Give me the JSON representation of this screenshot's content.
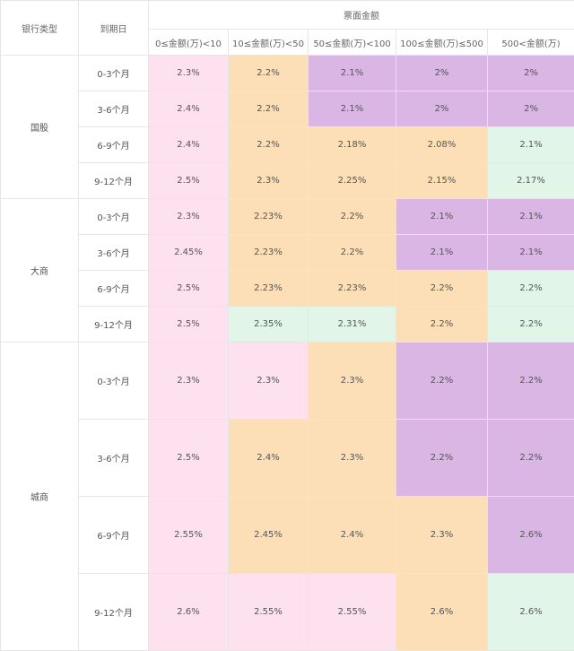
{
  "table": {
    "header_bank_type": "银行类型",
    "header_term": "到期日",
    "header_group": "票面金额",
    "amount_columns": [
      "0≤金额(万)<10",
      "10≤金额(万)<50",
      "50≤金额(万)<100",
      "100≤金额(万)≤500",
      "500<金额(万)"
    ],
    "groups": [
      {
        "bank": "国股",
        "rows": [
          {
            "term": "0-3个月",
            "rates": [
              "2.3%",
              "2.2%",
              "2.1%",
              "2%",
              "2%"
            ],
            "colors": [
              "pink",
              "orange",
              "purple",
              "purple",
              "purple"
            ]
          },
          {
            "term": "3-6个月",
            "rates": [
              "2.4%",
              "2.2%",
              "2.1%",
              "2%",
              "2%"
            ],
            "colors": [
              "pink",
              "orange",
              "purple",
              "purple",
              "purple"
            ]
          },
          {
            "term": "6-9个月",
            "rates": [
              "2.4%",
              "2.2%",
              "2.18%",
              "2.08%",
              "2.1%"
            ],
            "colors": [
              "pink",
              "orange",
              "orange",
              "orange",
              "green"
            ]
          },
          {
            "term": "9-12个月",
            "rates": [
              "2.5%",
              "2.3%",
              "2.25%",
              "2.15%",
              "2.17%"
            ],
            "colors": [
              "pink",
              "orange",
              "orange",
              "orange",
              "green"
            ]
          }
        ]
      },
      {
        "bank": "大商",
        "rows": [
          {
            "term": "0-3个月",
            "rates": [
              "2.3%",
              "2.23%",
              "2.2%",
              "2.1%",
              "2.1%"
            ],
            "colors": [
              "pink",
              "orange",
              "orange",
              "purple",
              "purple"
            ]
          },
          {
            "term": "3-6个月",
            "rates": [
              "2.45%",
              "2.23%",
              "2.2%",
              "2.1%",
              "2.1%"
            ],
            "colors": [
              "pink",
              "orange",
              "orange",
              "purple",
              "purple"
            ]
          },
          {
            "term": "6-9个月",
            "rates": [
              "2.5%",
              "2.23%",
              "2.23%",
              "2.2%",
              "2.2%"
            ],
            "colors": [
              "pink",
              "orange",
              "orange",
              "orange",
              "green"
            ]
          },
          {
            "term": "9-12个月",
            "rates": [
              "2.5%",
              "2.35%",
              "2.31%",
              "2.2%",
              "2.2%"
            ],
            "colors": [
              "pink",
              "green",
              "green",
              "orange",
              "green"
            ]
          }
        ]
      },
      {
        "bank": "城商",
        "rows": [
          {
            "term": "0-3个月",
            "rates": [
              "2.3%",
              "2.3%",
              "2.3%",
              "2.2%",
              "2.2%"
            ],
            "colors": [
              "pink",
              "pink",
              "orange",
              "purple",
              "purple"
            ]
          },
          {
            "term": "3-6个月",
            "rates": [
              "2.5%",
              "2.4%",
              "2.3%",
              "2.2%",
              "2.2%"
            ],
            "colors": [
              "pink",
              "orange",
              "orange",
              "purple",
              "purple"
            ]
          },
          {
            "term": "6-9个月",
            "rates": [
              "2.55%",
              "2.45%",
              "2.4%",
              "2.3%",
              "2.6%"
            ],
            "colors": [
              "pink",
              "orange",
              "orange",
              "orange",
              "purple"
            ]
          },
          {
            "term": "9-12个月",
            "rates": [
              "2.6%",
              "2.55%",
              "2.55%",
              "2.6%",
              "2.6%"
            ],
            "colors": [
              "pink",
              "pink",
              "pink",
              "orange",
              "green"
            ]
          }
        ]
      }
    ]
  },
  "colors": {
    "pink": "#fde1ef",
    "orange": "#fcdfb7",
    "purple": "#d9b6e4",
    "green": "#e1f6e9"
  }
}
